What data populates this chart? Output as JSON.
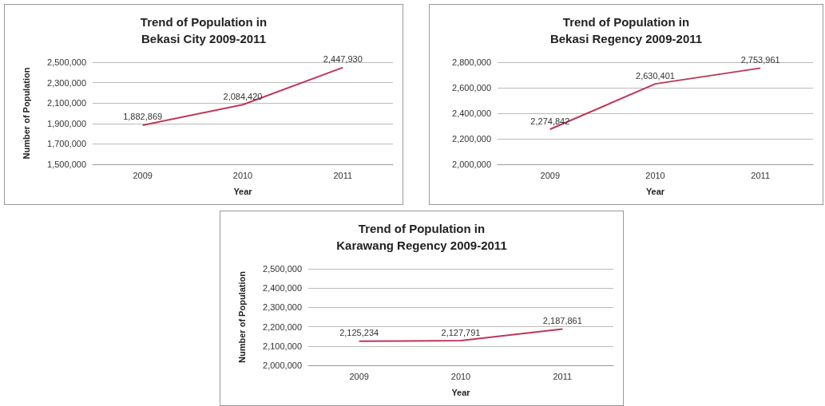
{
  "chart_data": [
    {
      "type": "line",
      "title": "Trend of Population in\nBekasi City 2009-2011",
      "xlabel": "Year",
      "ylabel": "Number of Population",
      "categories": [
        "2009",
        "2010",
        "2011"
      ],
      "series": [
        {
          "color": "#c0355a",
          "values": [
            1882869,
            2084420,
            2447930
          ],
          "value_labels": [
            "1,882,869",
            "2,084,420",
            "2,447,930"
          ]
        }
      ],
      "ylim": [
        1500000,
        2500000
      ],
      "yticks": [
        {
          "value": 1500000,
          "label": "1,500,000"
        },
        {
          "value": 1700000,
          "label": "1,700,000"
        },
        {
          "value": 1900000,
          "label": "1,900,000"
        },
        {
          "value": 2100000,
          "label": "2,100,000"
        },
        {
          "value": 2300000,
          "label": "2,300,000"
        },
        {
          "value": 2500000,
          "label": "2,500,000"
        }
      ],
      "grid": "y",
      "marker": "none"
    },
    {
      "type": "line",
      "title": "Trend of Population in\nBekasi Regency 2009-2011",
      "xlabel": "Year",
      "categories": [
        "2009",
        "2010",
        "2011"
      ],
      "series": [
        {
          "color": "#c0355a",
          "values": [
            2274842,
            2630401,
            2753961
          ],
          "value_labels": [
            "2,274,842",
            "2,630,401",
            "2,753,961"
          ]
        }
      ],
      "ylim": [
        2000000,
        2800000
      ],
      "yticks": [
        {
          "value": 2000000,
          "label": "2,000,000"
        },
        {
          "value": 2200000,
          "label": "2,200,000"
        },
        {
          "value": 2400000,
          "label": "2,400,000"
        },
        {
          "value": 2600000,
          "label": "2,600,000"
        },
        {
          "value": 2800000,
          "label": "2,800,000"
        }
      ],
      "grid": "y",
      "marker": "none"
    },
    {
      "type": "line",
      "title": "Trend of Population in\nKarawang Regency 2009-2011",
      "xlabel": "Year",
      "ylabel": "Number of Population",
      "categories": [
        "2009",
        "2010",
        "2011"
      ],
      "series": [
        {
          "color": "#c0355a",
          "values": [
            2125234,
            2127791,
            2187861
          ],
          "value_labels": [
            "2,125,234",
            "2,127,791",
            "2,187,861"
          ]
        }
      ],
      "ylim": [
        2000000,
        2500000
      ],
      "yticks": [
        {
          "value": 2000000,
          "label": "2,000,000"
        },
        {
          "value": 2100000,
          "label": "2,100,000"
        },
        {
          "value": 2200000,
          "label": "2,200,000"
        },
        {
          "value": 2300000,
          "label": "2,300,000"
        },
        {
          "value": 2400000,
          "label": "2,400,000"
        },
        {
          "value": 2500000,
          "label": "2,500,000"
        }
      ],
      "grid": "y",
      "marker": "none"
    }
  ]
}
